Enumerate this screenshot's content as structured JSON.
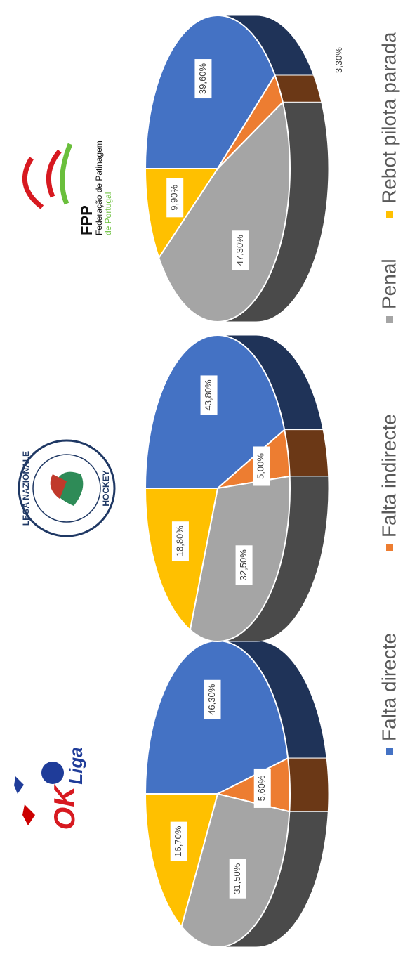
{
  "logos": [
    {
      "lines": [
        "OK",
        "Liga"
      ]
    },
    {
      "lines": [
        "LEGA NAZIONALE",
        "HOCKEY"
      ]
    },
    {
      "lines": [
        "FPP",
        "Federação de Patinagem",
        "de Portugal"
      ]
    }
  ],
  "legend": {
    "categories": [
      "Falta directe",
      "Falta indirecte",
      "Penal",
      "Rebot pilota parada"
    ],
    "colors": [
      "#4472c4",
      "#ed7d31",
      "#a5a5a5",
      "#ffc000"
    ]
  },
  "chart_data": [
    {
      "type": "pie",
      "values": [
        46.3,
        5.6,
        31.5,
        16.7
      ],
      "value_labels": [
        "46,30%",
        "5,60%",
        "31,50%",
        "16,70%"
      ]
    },
    {
      "type": "pie",
      "values": [
        43.8,
        5.0,
        32.5,
        18.8
      ],
      "value_labels": [
        "43,80%",
        "5,00%",
        "32,50%",
        "18,80%"
      ]
    },
    {
      "type": "pie",
      "values": [
        39.6,
        3.3,
        47.3,
        9.9
      ],
      "value_labels": [
        "39,60%",
        "3,30%",
        "47,30%",
        "9,90%"
      ]
    }
  ]
}
